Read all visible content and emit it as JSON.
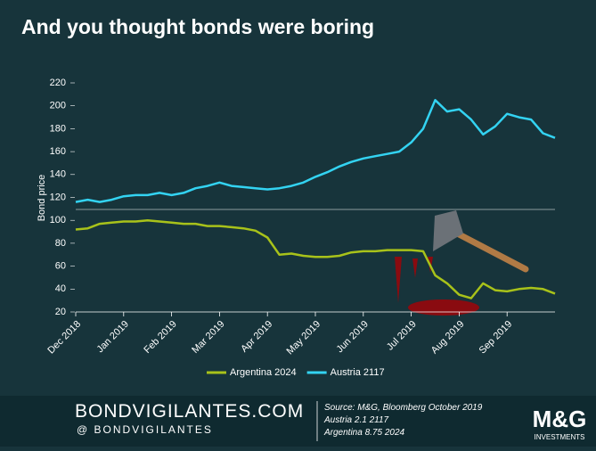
{
  "chart_data": {
    "type": "line",
    "title": "And you thought bonds were boring",
    "y_label": "Bond price",
    "categories": [
      "Dec 2018",
      null,
      null,
      null,
      "Jan 2019",
      null,
      null,
      null,
      "Feb 2019",
      null,
      null,
      null,
      "Mar 2019",
      null,
      null,
      null,
      "Apr 2019",
      null,
      null,
      null,
      "May 2019",
      null,
      null,
      null,
      "Jun 2019",
      null,
      null,
      null,
      "Jul 2019",
      null,
      null,
      null,
      "Aug 2019",
      null,
      null,
      null,
      "Sep 2019",
      null,
      null,
      null,
      null
    ],
    "series": [
      {
        "name": "Argentina 2024",
        "color": "#a8c21a",
        "values": [
          92,
          93,
          97,
          98,
          99,
          99,
          100,
          99,
          98,
          97,
          97,
          95,
          95,
          94,
          93,
          91,
          85,
          70,
          71,
          69,
          68,
          68,
          69,
          72,
          73,
          73,
          74,
          74,
          74,
          73,
          52,
          45,
          35,
          32,
          45,
          39,
          38,
          40,
          41,
          40,
          36
        ]
      },
      {
        "name": "Austria 2117",
        "color": "#33d3f2",
        "values": [
          116,
          118,
          116,
          118,
          121,
          122,
          122,
          124,
          122,
          124,
          128,
          130,
          133,
          130,
          129,
          128,
          127,
          128,
          130,
          133,
          138,
          142,
          147,
          151,
          154,
          156,
          158,
          160,
          168,
          180,
          205,
          195,
          197,
          188,
          175,
          182,
          193,
          190,
          188,
          176,
          172
        ]
      }
    ],
    "ylim": [
      20,
      220
    ],
    "yticks": [
      20,
      40,
      60,
      80,
      100,
      120,
      140,
      160,
      180,
      200,
      220
    ]
  },
  "footer": {
    "brand": "BONDVIGILANTES.COM",
    "handle": "@ BONDVIGILANTES",
    "source": "Source: M&G, Bloomberg October 2019",
    "note1": "Austria 2.1 2117",
    "note2": "Argentina 8.75 2024",
    "logo": "M&G",
    "logo_sub": "INVESTMENTS"
  }
}
